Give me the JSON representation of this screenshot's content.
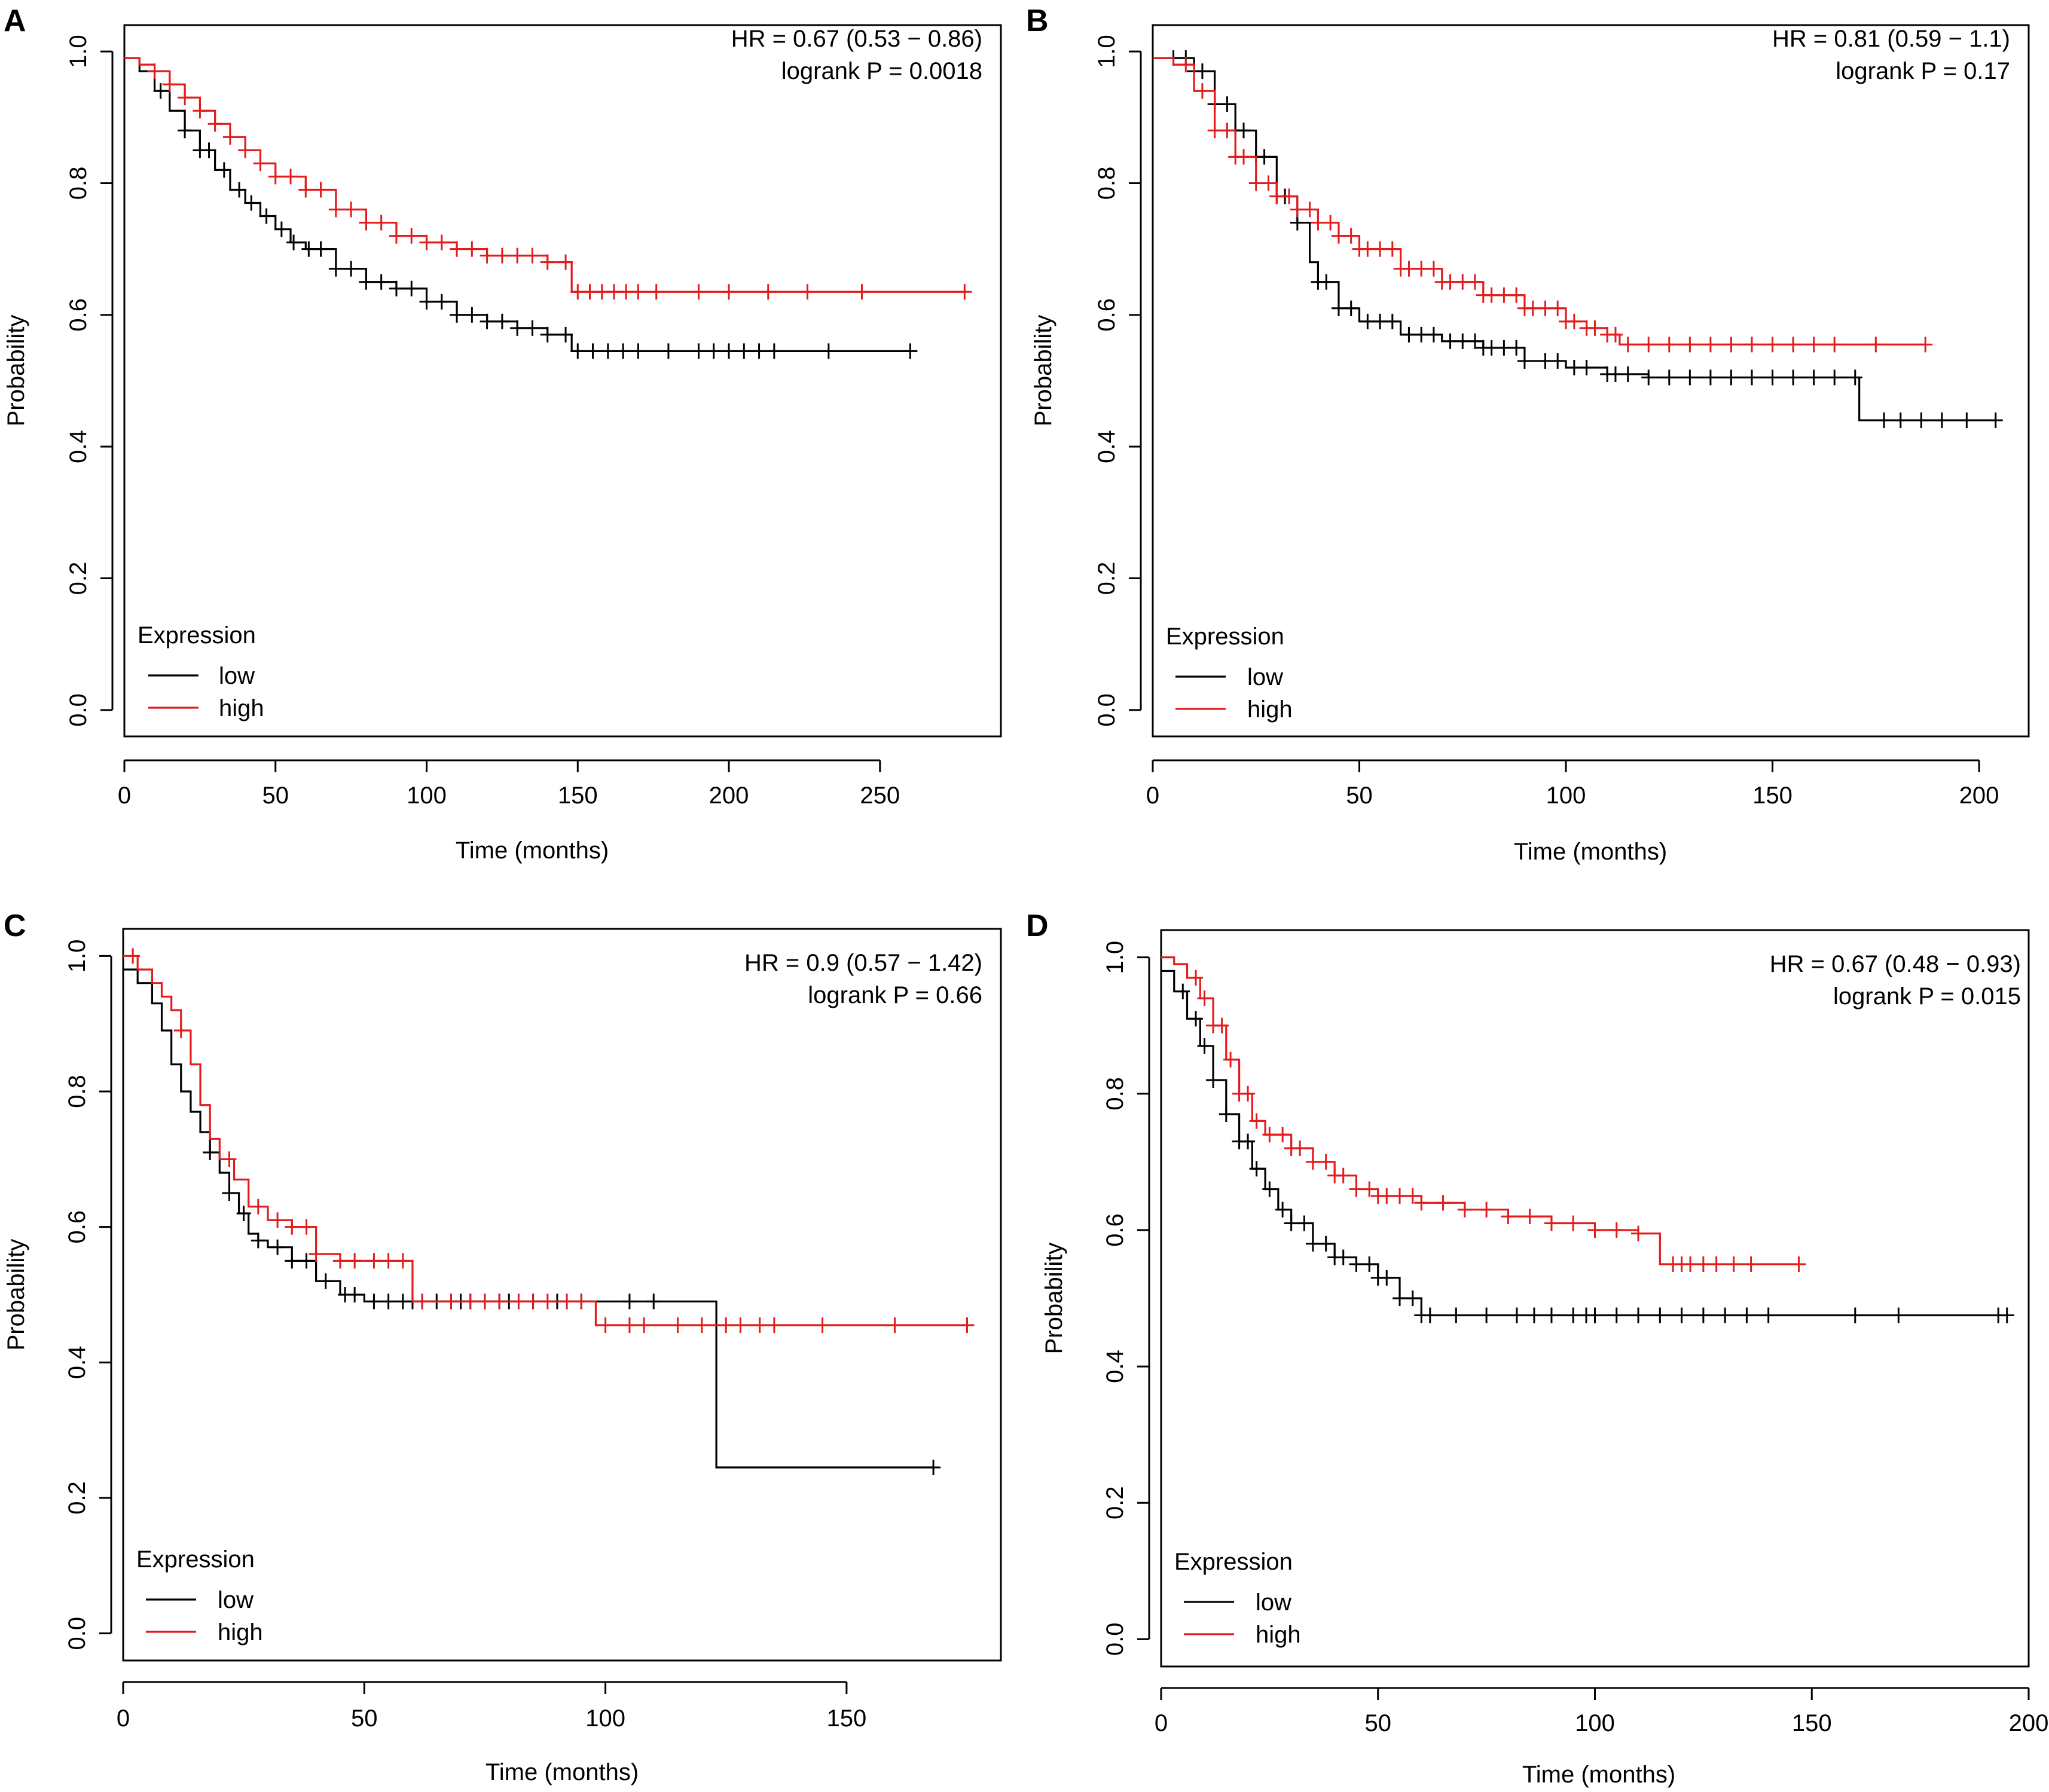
{
  "chart_data": [
    {
      "panel": "A",
      "type": "line",
      "title": "",
      "xlabel": "Time (months)",
      "ylabel": "Probability",
      "xlim": [
        0,
        290
      ],
      "ylim": [
        -0.04,
        1.04
      ],
      "xticks": [
        0,
        50,
        100,
        150,
        200,
        250
      ],
      "yticks": [
        0.0,
        0.2,
        0.4,
        0.6,
        0.8,
        1.0
      ],
      "ytick_labels": [
        "0.0",
        "0.2",
        "0.4",
        "0.6",
        "0.8",
        "1.0"
      ],
      "annotation": [
        "HR = 0.67 (0.53 − 0.86)",
        "logrank P = 0.0018"
      ],
      "legend": {
        "title": "Expression",
        "position": "bottom-left",
        "entries": [
          "low",
          "high"
        ]
      },
      "series": [
        {
          "name": "low",
          "color": "#000000",
          "x": [
            0,
            5,
            10,
            15,
            20,
            25,
            30,
            35,
            40,
            45,
            50,
            55,
            60,
            70,
            80,
            90,
            100,
            110,
            120,
            130,
            140,
            148,
            260
          ],
          "y": [
            0.99,
            0.97,
            0.94,
            0.91,
            0.88,
            0.85,
            0.82,
            0.79,
            0.77,
            0.75,
            0.73,
            0.71,
            0.7,
            0.67,
            0.65,
            0.64,
            0.62,
            0.6,
            0.59,
            0.58,
            0.57,
            0.545,
            0.545
          ],
          "censored": [
            12,
            20,
            25,
            28,
            33,
            38,
            42,
            47,
            52,
            56,
            61,
            65,
            70,
            75,
            80,
            85,
            90,
            95,
            100,
            105,
            110,
            115,
            120,
            125,
            130,
            135,
            140,
            146,
            150,
            155,
            160,
            165,
            170,
            180,
            190,
            195,
            200,
            205,
            210,
            215,
            233,
            260
          ]
        },
        {
          "name": "high",
          "color": "#e41a1c",
          "x": [
            0,
            5,
            10,
            15,
            20,
            25,
            30,
            35,
            40,
            45,
            50,
            60,
            70,
            80,
            90,
            100,
            110,
            120,
            130,
            140,
            148,
            278
          ],
          "y": [
            0.99,
            0.98,
            0.97,
            0.95,
            0.93,
            0.91,
            0.89,
            0.87,
            0.85,
            0.83,
            0.81,
            0.79,
            0.76,
            0.74,
            0.72,
            0.71,
            0.7,
            0.69,
            0.69,
            0.68,
            0.635,
            0.635
          ],
          "censored": [
            10,
            15,
            20,
            25,
            30,
            35,
            40,
            45,
            50,
            55,
            60,
            65,
            70,
            75,
            80,
            85,
            90,
            95,
            100,
            105,
            110,
            115,
            120,
            125,
            130,
            135,
            140,
            146,
            150,
            154,
            158,
            162,
            166,
            170,
            176,
            190,
            200,
            213,
            226,
            244,
            278
          ]
        }
      ]
    },
    {
      "panel": "B",
      "type": "line",
      "title": "",
      "xlabel": "Time (months)",
      "ylabel": "Probability",
      "xlim": [
        0,
        212
      ],
      "ylim": [
        -0.04,
        1.04
      ],
      "xticks": [
        0,
        50,
        100,
        150,
        200
      ],
      "yticks": [
        0.0,
        0.2,
        0.4,
        0.6,
        0.8,
        1.0
      ],
      "ytick_labels": [
        "0.0",
        "0.2",
        "0.4",
        "0.6",
        "0.8",
        "1.0"
      ],
      "annotation": [
        "HR = 0.81 (0.59 − 1.1)",
        "logrank P = 0.17"
      ],
      "legend": {
        "title": "Expression",
        "position": "bottom-left",
        "entries": [
          "low",
          "high"
        ]
      },
      "series": [
        {
          "name": "low",
          "color": "#000000",
          "x": [
            0,
            5,
            10,
            15,
            20,
            25,
            30,
            35,
            38,
            40,
            45,
            50,
            60,
            70,
            80,
            90,
            100,
            110,
            120,
            140,
            160,
            171,
            204
          ],
          "y": [
            0.99,
            0.99,
            0.97,
            0.92,
            0.88,
            0.84,
            0.78,
            0.74,
            0.68,
            0.65,
            0.61,
            0.59,
            0.57,
            0.56,
            0.55,
            0.53,
            0.52,
            0.51,
            0.505,
            0.505,
            0.505,
            0.44,
            0.44
          ],
          "censored": [
            5,
            8,
            10,
            12,
            15,
            18,
            20,
            22,
            25,
            27,
            30,
            32,
            35,
            40,
            42,
            45,
            48,
            52,
            55,
            58,
            62,
            65,
            68,
            72,
            75,
            78,
            80,
            82,
            85,
            88,
            90,
            95,
            98,
            102,
            105,
            110,
            112,
            115,
            120,
            125,
            130,
            135,
            140,
            145,
            150,
            155,
            160,
            165,
            170,
            177,
            181,
            186,
            191,
            197,
            204
          ]
        },
        {
          "name": "high",
          "color": "#e41a1c",
          "x": [
            0,
            5,
            10,
            15,
            20,
            25,
            30,
            35,
            40,
            45,
            50,
            60,
            70,
            80,
            90,
            100,
            105,
            110,
            113,
            187
          ],
          "y": [
            0.99,
            0.98,
            0.94,
            0.88,
            0.84,
            0.8,
            0.78,
            0.76,
            0.74,
            0.72,
            0.7,
            0.67,
            0.65,
            0.63,
            0.61,
            0.59,
            0.58,
            0.57,
            0.555,
            0.555
          ],
          "censored": [
            8,
            12,
            15,
            18,
            20,
            22,
            25,
            28,
            30,
            33,
            35,
            38,
            40,
            43,
            45,
            48,
            50,
            52,
            55,
            58,
            60,
            62,
            65,
            68,
            70,
            72,
            75,
            78,
            80,
            82,
            85,
            88,
            90,
            92,
            95,
            98,
            100,
            102,
            105,
            107,
            110,
            112,
            115,
            120,
            125,
            130,
            135,
            140,
            145,
            150,
            155,
            160,
            165,
            175,
            187
          ]
        }
      ]
    },
    {
      "panel": "C",
      "type": "line",
      "title": "",
      "xlabel": "Time (months)",
      "ylabel": "Probability",
      "xlim": [
        0,
        182
      ],
      "ylim": [
        -0.04,
        1.04
      ],
      "xticks": [
        0,
        50,
        100,
        150
      ],
      "yticks": [
        0.0,
        0.2,
        0.4,
        0.6,
        0.8,
        1.0
      ],
      "ytick_labels": [
        "0.0",
        "0.2",
        "0.4",
        "0.6",
        "0.8",
        "1.0"
      ],
      "annotation": [
        "HR = 0.9 (0.57 − 1.42)",
        "logrank P = 0.66"
      ],
      "legend": {
        "title": "Expression",
        "position": "bottom-left",
        "entries": [
          "low",
          "high"
        ]
      },
      "series": [
        {
          "name": "low",
          "color": "#000000",
          "x": [
            0,
            3,
            6,
            8,
            10,
            12,
            14,
            16,
            18,
            20,
            22,
            24,
            26,
            28,
            30,
            35,
            40,
            45,
            50,
            60,
            80,
            100,
            123,
            123,
            168
          ],
          "y": [
            0.98,
            0.96,
            0.93,
            0.89,
            0.84,
            0.8,
            0.77,
            0.74,
            0.71,
            0.68,
            0.65,
            0.62,
            0.59,
            0.58,
            0.57,
            0.55,
            0.52,
            0.5,
            0.49,
            0.49,
            0.49,
            0.49,
            0.49,
            0.245,
            0.245
          ],
          "censored": [
            18,
            22,
            25,
            28,
            32,
            35,
            38,
            42,
            46,
            48,
            52,
            55,
            58,
            60,
            62,
            65,
            68,
            70,
            72,
            75,
            78,
            80,
            85,
            90,
            95,
            105,
            110,
            168
          ]
        },
        {
          "name": "high",
          "color": "#e41a1c",
          "x": [
            0,
            3,
            6,
            8,
            10,
            12,
            14,
            16,
            18,
            20,
            23,
            26,
            30,
            35,
            40,
            45,
            50,
            57,
            60,
            80,
            98,
            175
          ],
          "y": [
            1.0,
            0.98,
            0.96,
            0.94,
            0.92,
            0.89,
            0.84,
            0.78,
            0.73,
            0.7,
            0.67,
            0.63,
            0.61,
            0.6,
            0.56,
            0.55,
            0.55,
            0.55,
            0.49,
            0.49,
            0.455,
            0.455
          ],
          "censored": [
            2,
            12,
            22,
            28,
            32,
            35,
            38,
            40,
            45,
            48,
            52,
            55,
            58,
            62,
            68,
            72,
            75,
            78,
            82,
            85,
            88,
            92,
            95,
            100,
            105,
            108,
            115,
            120,
            125,
            128,
            132,
            135,
            145,
            160,
            175
          ]
        }
      ]
    },
    {
      "panel": "D",
      "type": "line",
      "title": "",
      "xlabel": "Time (months)",
      "ylabel": "Probability",
      "xlim": [
        0,
        200
      ],
      "ylim": [
        -0.04,
        1.04
      ],
      "xticks": [
        0,
        50,
        100,
        150,
        200
      ],
      "yticks": [
        0.0,
        0.2,
        0.4,
        0.6,
        0.8,
        1.0
      ],
      "ytick_labels": [
        "0.0",
        "0.2",
        "0.4",
        "0.6",
        "0.8",
        "1.0"
      ],
      "annotation": [
        "HR = 0.67 (0.48 − 0.93)",
        "logrank P = 0.015"
      ],
      "legend": {
        "title": "Expression",
        "position": "bottom-left",
        "entries": [
          "low",
          "high"
        ]
      },
      "series": [
        {
          "name": "low",
          "color": "#000000",
          "x": [
            0,
            3,
            6,
            9,
            12,
            15,
            18,
            21,
            24,
            27,
            30,
            35,
            40,
            45,
            50,
            55,
            60,
            195
          ],
          "y": [
            0.98,
            0.95,
            0.91,
            0.87,
            0.82,
            0.77,
            0.73,
            0.69,
            0.66,
            0.63,
            0.61,
            0.58,
            0.56,
            0.55,
            0.53,
            0.5,
            0.475,
            0.475
          ],
          "censored": [
            5,
            8,
            10,
            12,
            15,
            18,
            20,
            22,
            25,
            28,
            30,
            33,
            35,
            38,
            40,
            42,
            45,
            48,
            50,
            52,
            55,
            58,
            60,
            62,
            68,
            75,
            82,
            86,
            90,
            95,
            98,
            100,
            105,
            110,
            115,
            120,
            125,
            130,
            135,
            140,
            160,
            170,
            193,
            195
          ]
        },
        {
          "name": "high",
          "color": "#e41a1c",
          "x": [
            0,
            3,
            6,
            9,
            12,
            15,
            18,
            21,
            24,
            30,
            35,
            40,
            45,
            50,
            60,
            70,
            80,
            90,
            100,
            110,
            115,
            147
          ],
          "y": [
            1.0,
            0.99,
            0.97,
            0.94,
            0.9,
            0.85,
            0.8,
            0.76,
            0.74,
            0.72,
            0.7,
            0.68,
            0.66,
            0.65,
            0.64,
            0.63,
            0.62,
            0.61,
            0.6,
            0.595,
            0.55,
            0.55
          ],
          "censored": [
            8,
            10,
            12,
            14,
            16,
            18,
            20,
            22,
            25,
            28,
            30,
            32,
            35,
            38,
            40,
            42,
            45,
            48,
            50,
            52,
            55,
            58,
            60,
            65,
            70,
            75,
            80,
            85,
            90,
            95,
            100,
            105,
            110,
            118,
            120,
            122,
            125,
            128,
            132,
            136,
            147
          ]
        }
      ]
    }
  ],
  "panel_labels": [
    "A",
    "B",
    "C",
    "D"
  ]
}
